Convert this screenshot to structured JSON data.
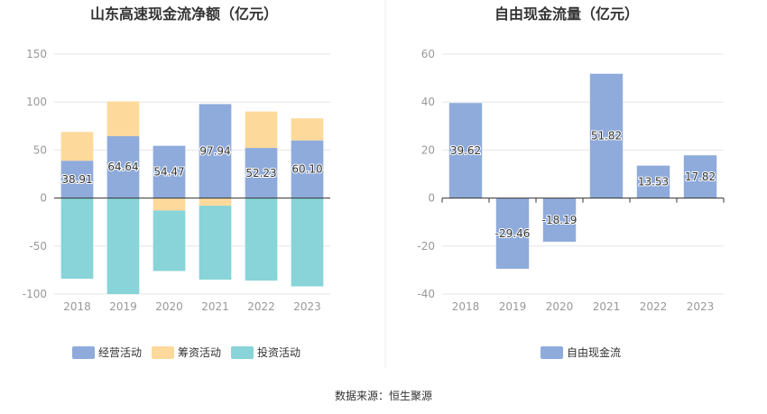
{
  "source_text": "数据来源：恒生聚源",
  "chart_data": [
    {
      "type": "bar",
      "stacked": true,
      "title": "山东高速现金流净额（亿元）",
      "categories": [
        "2018",
        "2019",
        "2020",
        "2021",
        "2022",
        "2023"
      ],
      "ylim": [
        -100,
        150
      ],
      "yticks": [
        -100,
        -50,
        0,
        50,
        100,
        150
      ],
      "grid": true,
      "legend_position": "bottom",
      "series": [
        {
          "name": "经营活动",
          "color": "#8fabdb",
          "values": [
            38.91,
            64.64,
            54.47,
            97.94,
            52.23,
            60.1
          ],
          "labels": [
            "38.91",
            "64.64",
            "54.47",
            "97.94",
            "52.23",
            "60.10"
          ]
        },
        {
          "name": "筹资活动",
          "color": "#fdd99b",
          "values": [
            30,
            36,
            -13,
            -8,
            38,
            23
          ]
        },
        {
          "name": "投资活动",
          "color": "#88d4d8",
          "values": [
            -84,
            -100,
            -63,
            -77,
            -86,
            -92
          ]
        }
      ]
    },
    {
      "type": "bar",
      "title": "自由现金流量（亿元）",
      "categories": [
        "2018",
        "2019",
        "2020",
        "2021",
        "2022",
        "2023"
      ],
      "ylim": [
        -40,
        60
      ],
      "yticks": [
        -40,
        -20,
        0,
        20,
        40,
        60
      ],
      "grid": true,
      "legend_position": "bottom",
      "series": [
        {
          "name": "自由现金流",
          "color": "#8fabdb",
          "values": [
            39.62,
            -29.46,
            -18.19,
            51.82,
            13.53,
            17.82
          ],
          "labels": [
            "39.62",
            "-29.46",
            "-18.19",
            "51.82",
            "13.53",
            "17.82"
          ]
        }
      ]
    }
  ]
}
